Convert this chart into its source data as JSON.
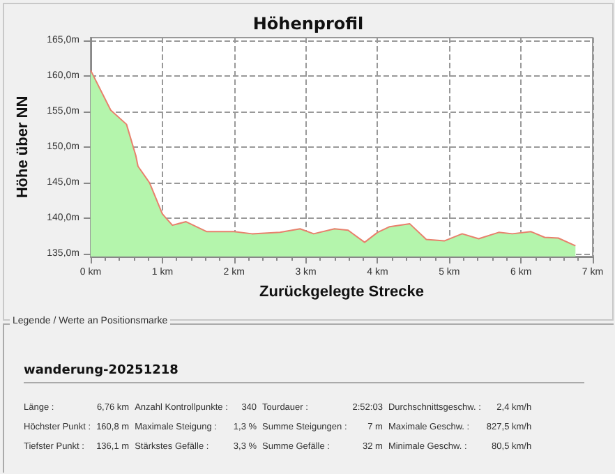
{
  "chart_data": {
    "type": "area",
    "title": "Höhenprofil",
    "xlabel": "Zurückgelegte Strecke",
    "ylabel": "Höhe über NN",
    "series": [
      {
        "color": "#b4f5ac",
        "x": [
          0,
          0.28,
          0.5,
          0.63,
          0.66,
          0.82,
          1.0,
          1.14,
          1.33,
          1.62,
          2.0,
          2.25,
          2.64,
          2.92,
          3.11,
          3.4,
          3.59,
          3.82,
          4.0,
          4.17,
          4.45,
          4.68,
          4.93,
          5.18,
          5.41,
          5.69,
          5.88,
          6.14,
          6.33,
          6.52,
          6.76
        ],
        "values": [
          160.8,
          155.2,
          153.2,
          148.8,
          147.3,
          145.0,
          140.6,
          139.0,
          139.5,
          138.1,
          138.1,
          137.8,
          138.0,
          138.5,
          137.8,
          138.5,
          138.3,
          136.6,
          138.0,
          138.8,
          139.2,
          137.0,
          136.8,
          137.8,
          137.1,
          138.0,
          137.8,
          138.1,
          137.3,
          137.2,
          136.1
        ]
      },
      {
        "type": "line",
        "color": "#e8806c",
        "x": [
          0,
          0.28,
          0.5,
          0.63,
          0.66,
          0.82,
          1.0,
          1.14,
          1.33,
          1.62,
          2.0,
          2.25,
          2.64,
          2.92,
          3.11,
          3.4,
          3.59,
          3.82,
          4.0,
          4.17,
          4.45,
          4.68,
          4.93,
          5.18,
          5.41,
          5.69,
          5.88,
          6.14,
          6.33,
          6.52,
          6.76
        ],
        "values": [
          160.8,
          155.2,
          153.2,
          148.8,
          147.3,
          145.0,
          140.6,
          139.0,
          139.5,
          138.1,
          138.1,
          137.8,
          138.0,
          138.5,
          137.8,
          138.5,
          138.3,
          136.6,
          138.0,
          138.8,
          139.2,
          137.0,
          136.8,
          137.8,
          137.1,
          138.0,
          137.8,
          138.1,
          137.3,
          137.2,
          136.1
        ]
      }
    ],
    "xlim": [
      0,
      7
    ],
    "xticks": [
      {
        "value": 0,
        "label": "0 km"
      },
      {
        "value": 1,
        "label": "1 km"
      },
      {
        "value": 2,
        "label": "2 km"
      },
      {
        "value": 3,
        "label": "3 km"
      },
      {
        "value": 4,
        "label": "4 km"
      },
      {
        "value": 5,
        "label": "5 km"
      },
      {
        "value": 6,
        "label": "6 km"
      },
      {
        "value": 7,
        "label": "7 km"
      }
    ],
    "ylim": [
      134.6,
      165.4
    ],
    "yticks": [
      {
        "value": 135,
        "label": "135,0m"
      },
      {
        "value": 140,
        "label": "140,0m"
      },
      {
        "value": 145,
        "label": "145,0m"
      },
      {
        "value": 150,
        "label": "150,0m"
      },
      {
        "value": 155,
        "label": "155,0m"
      },
      {
        "value": 160,
        "label": "160,0m"
      },
      {
        "value": 165,
        "label": "165,0m"
      }
    ],
    "grid": true,
    "line_style": "solid",
    "marker": "none",
    "annotations": [
      "Legende / Werte an Positionsmarke",
      "wanderung-20251218",
      "Länge :",
      "6,76 km",
      "Anzahl Kontrollpunkte :",
      "340",
      "Tourdauer :",
      "2:52:03",
      "Durchschnittsgeschw. :",
      "2,4 km/h",
      "Höchster Punkt :",
      "160,8 m",
      "Maximale Steigung :",
      "1,3 %",
      "Summe Steigungen :",
      "7 m",
      "Maximale Geschw. :",
      "827,5 km/h",
      "Tiefster Punkt :",
      "136,1 m",
      "Stärkstes Gefälle :",
      "3,3 %",
      "Summe Gefälle :",
      "32 m",
      "Minimale Geschw. :",
      "80,5 km/h"
    ]
  }
}
